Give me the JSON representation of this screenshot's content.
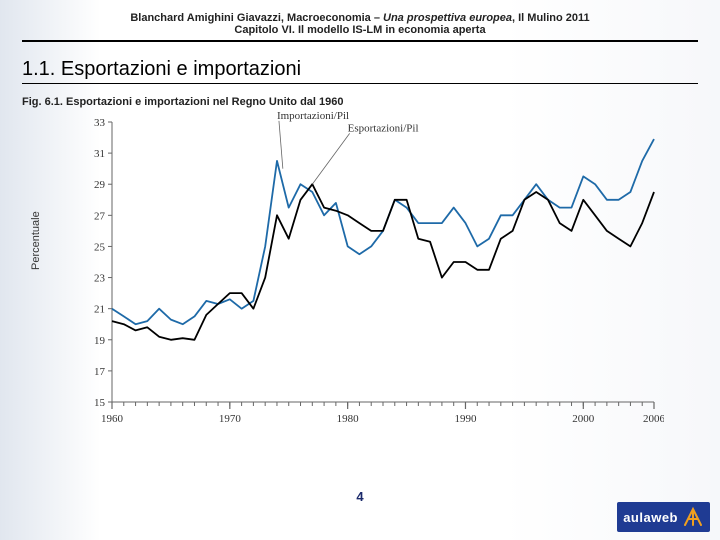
{
  "header": {
    "authors": "Blanchard Amighini Giavazzi, ",
    "book_title_prefix": "Macroeconomia – ",
    "book_title_italic": "Una prospettiva europea",
    "publisher": ", Il Mulino 2011",
    "chapter": "Capitolo VI. Il modello IS-LM in economia aperta"
  },
  "section": {
    "title": "1.1. Esportazioni e importazioni"
  },
  "figure": {
    "caption": "Fig. 6.1. Esportazioni e importazioni nel Regno Unito dal 1960",
    "ylabel": "Percentuale",
    "xlim": [
      1960,
      2006
    ],
    "ylim": [
      15,
      33
    ],
    "ytick_step": 2,
    "xtick_major": [
      1960,
      1970,
      1980,
      1990,
      2000,
      2006
    ],
    "xtick_minor_step": 1,
    "axis_color": "#666666",
    "tick_color": "#666666",
    "series": [
      {
        "name": "Importazioni/Pil",
        "color": "#1e6aa8",
        "width": 1.8,
        "label_xy": [
          1974,
          33.2
        ],
        "pointer_to": [
          1974.5,
          30.0
        ],
        "x": [
          1960,
          1961,
          1962,
          1963,
          1964,
          1965,
          1966,
          1967,
          1968,
          1969,
          1970,
          1971,
          1972,
          1973,
          1974,
          1975,
          1976,
          1977,
          1978,
          1979,
          1980,
          1981,
          1982,
          1983,
          1984,
          1985,
          1986,
          1987,
          1988,
          1989,
          1990,
          1991,
          1992,
          1993,
          1994,
          1995,
          1996,
          1997,
          1998,
          1999,
          2000,
          2001,
          2002,
          2003,
          2004,
          2005,
          2006
        ],
        "y": [
          21.0,
          20.5,
          20.0,
          20.2,
          21.0,
          20.3,
          20.0,
          20.5,
          21.5,
          21.3,
          21.6,
          21.0,
          21.5,
          25.0,
          30.5,
          27.5,
          29.0,
          28.5,
          27.0,
          27.8,
          25.0,
          24.5,
          25.0,
          26.0,
          28.0,
          27.5,
          26.5,
          26.5,
          26.5,
          27.5,
          26.5,
          25.0,
          25.5,
          27.0,
          27.0,
          28.0,
          29.0,
          28.0,
          27.5,
          27.5,
          29.5,
          29.0,
          28.0,
          28.0,
          28.5,
          30.5,
          31.9
        ]
      },
      {
        "name": "Esportazioni/Pil",
        "color": "#000000",
        "width": 1.8,
        "label_xy": [
          1980,
          32.4
        ],
        "pointer_to": [
          1977,
          29.0
        ],
        "x": [
          1960,
          1961,
          1962,
          1963,
          1964,
          1965,
          1966,
          1967,
          1968,
          1969,
          1970,
          1971,
          1972,
          1973,
          1974,
          1975,
          1976,
          1977,
          1978,
          1979,
          1980,
          1981,
          1982,
          1983,
          1984,
          1985,
          1986,
          1987,
          1988,
          1989,
          1990,
          1991,
          1992,
          1993,
          1994,
          1995,
          1996,
          1997,
          1998,
          1999,
          2000,
          2001,
          2002,
          2003,
          2004,
          2005,
          2006
        ],
        "y": [
          20.2,
          20.0,
          19.6,
          19.8,
          19.2,
          19.0,
          19.1,
          19.0,
          20.6,
          21.3,
          22.0,
          22.0,
          21.0,
          23.0,
          27.0,
          25.5,
          28.0,
          29.0,
          27.5,
          27.3,
          27.0,
          26.5,
          26.0,
          26.0,
          28.0,
          28.0,
          25.5,
          25.3,
          23.0,
          24.0,
          24.0,
          23.5,
          23.5,
          25.5,
          26.0,
          28.0,
          28.5,
          28.0,
          26.5,
          26.0,
          28.0,
          27.0,
          26.0,
          25.5,
          25.0,
          26.5,
          28.5
        ]
      }
    ]
  },
  "page_number": "4",
  "logo": {
    "text": "aulaweb",
    "bg": "#1f3b93",
    "glyph_fill": "#f0a020"
  }
}
